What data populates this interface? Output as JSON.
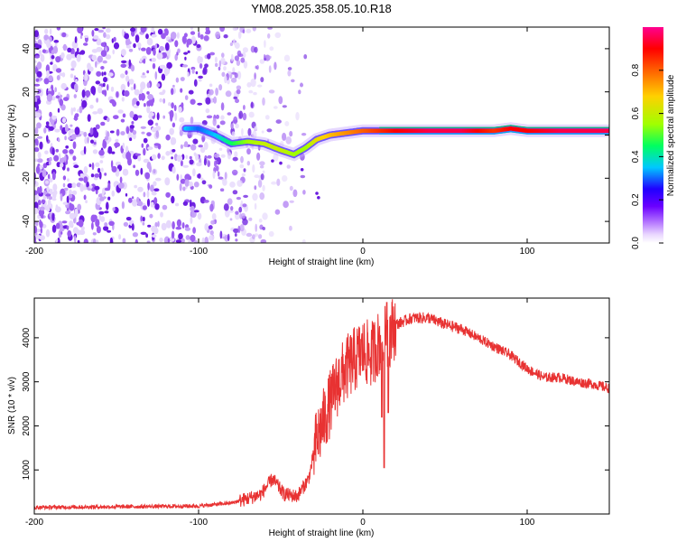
{
  "title": "YM08.2025.358.05.10.R18",
  "chart_data": [
    {
      "type": "heatmap",
      "name": "spectrogram",
      "xlabel": "Height of straight line (km)",
      "ylabel": "Frequency (Hz)",
      "xlim": [
        -200,
        150
      ],
      "ylim": [
        -50,
        50
      ],
      "xticks": [
        -200,
        -100,
        0,
        100
      ],
      "xtick_labels": [
        "-200",
        "-100",
        "0",
        "100"
      ],
      "yticks": [
        -40,
        -20,
        0,
        20,
        40
      ],
      "ytick_labels": [
        "-40",
        "-20",
        "0",
        "20",
        "40"
      ],
      "colorbar": {
        "label": "Normalized spectral amplitude",
        "range": [
          0,
          1
        ],
        "ticks": [
          0.0,
          0.2,
          0.4,
          0.6,
          0.8
        ],
        "tick_labels": [
          "0.0",
          "0.2",
          "0.4",
          "0.6",
          "0.8"
        ],
        "colors": [
          "#ffffff",
          "#e9d6ff",
          "#b070ff",
          "#6a00ff",
          "#2000ff",
          "#00c8ff",
          "#00ff60",
          "#a0ff00",
          "#ffd000",
          "#ff6000",
          "#ff0000",
          "#ff0090"
        ]
      },
      "noise_region": {
        "x_from": -200,
        "x_to": -60,
        "amplitude": 0.1
      },
      "trace": {
        "x": [
          -108,
          -100,
          -90,
          -80,
          -70,
          -60,
          -50,
          -42,
          -35,
          -28,
          -20,
          -10,
          0,
          10,
          20,
          40,
          60,
          80,
          90,
          100,
          120,
          150
        ],
        "freq": [
          3,
          3,
          0,
          -4,
          -3,
          -4,
          -7,
          -9,
          -6,
          -2,
          0,
          1,
          2,
          2,
          2,
          2,
          2,
          2,
          3,
          2,
          2,
          2
        ],
        "amplitude": [
          0.35,
          0.3,
          0.35,
          0.45,
          0.55,
          0.6,
          0.6,
          0.55,
          0.55,
          0.65,
          0.7,
          0.75,
          0.8,
          0.85,
          0.9,
          0.95,
          0.95,
          0.85,
          0.9,
          0.9,
          0.95,
          0.95
        ]
      }
    },
    {
      "type": "line",
      "name": "snr",
      "xlabel": "Height of straight line (km)",
      "ylabel": "SNR (10 * v/v)",
      "xlim": [
        -200,
        150
      ],
      "ylim": [
        0,
        4900
      ],
      "xticks": [
        -200,
        -100,
        0,
        100
      ],
      "xtick_labels": [
        "-200",
        "-100",
        "0",
        "100"
      ],
      "yticks": [
        1000,
        2000,
        3000,
        4000
      ],
      "ytick_labels": [
        "1000",
        "2000",
        "3000",
        "4000"
      ],
      "color": "#e83232",
      "envelope": {
        "x": [
          -200,
          -100,
          -80,
          -70,
          -62,
          -55,
          -48,
          -40,
          -33,
          -28,
          -20,
          -15,
          -10,
          -5,
          0,
          5,
          10,
          15,
          20,
          30,
          40,
          50,
          60,
          70,
          80,
          90,
          100,
          110,
          120,
          130,
          140,
          150
        ],
        "y": [
          150,
          180,
          250,
          350,
          450,
          800,
          450,
          400,
          800,
          1700,
          2500,
          3000,
          3300,
          3500,
          3700,
          3600,
          3900,
          4000,
          4300,
          4450,
          4450,
          4300,
          4200,
          4000,
          3800,
          3600,
          3300,
          3100,
          3100,
          3000,
          2950,
          2850
        ]
      },
      "dips": [
        {
          "x": 13,
          "y": 1050
        },
        {
          "x": 11.5,
          "y": 2200
        },
        {
          "x": 15.5,
          "y": 2300
        }
      ],
      "peaks": [
        {
          "x": 14.5,
          "y": 4800
        }
      ]
    }
  ]
}
